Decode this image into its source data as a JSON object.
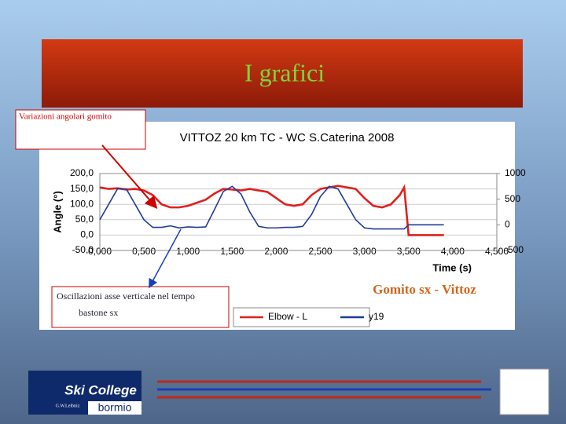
{
  "slide": {
    "title": "I grafici",
    "note_top": "Variazioni angolari gomito",
    "note_bottom": [
      "Oscillazioni asse verticale nel tempo",
      "bastone sx"
    ],
    "caption": "Gomito sx - Vittoz",
    "logo": [
      "Ski College",
      "bormio",
      "G.W.Leibniz"
    ]
  },
  "chart_data": {
    "type": "line",
    "title": "VITTOZ 20 km TC - WC  S.Caterina 2008",
    "x_label": "Time (s)",
    "y_label": "Angle (°)",
    "x": [
      0,
      0.1,
      0.2,
      0.3,
      0.4,
      0.5,
      0.6,
      0.7,
      0.8,
      0.9,
      1.0,
      1.1,
      1.2,
      1.3,
      1.4,
      1.5,
      1.6,
      1.7,
      1.8,
      1.9,
      2.0,
      2.1,
      2.2,
      2.3,
      2.4,
      2.5,
      2.6,
      2.7,
      2.8,
      2.9,
      3.0,
      3.1,
      3.2,
      3.3,
      3.4,
      3.45,
      3.5,
      3.6,
      3.7,
      3.8,
      3.9
    ],
    "series": [
      {
        "name": "Elbow - L",
        "color": "#e0201c",
        "values": [
          155,
          150,
          152,
          148,
          150,
          145,
          130,
          100,
          90,
          90,
          95,
          105,
          115,
          135,
          150,
          148,
          145,
          150,
          145,
          140,
          120,
          100,
          95,
          100,
          130,
          150,
          155,
          160,
          155,
          150,
          120,
          95,
          90,
          100,
          130,
          155,
          0,
          0,
          0,
          0,
          0
        ]
      },
      {
        "name": "y19",
        "color": "#1f3c99",
        "axis": "y2",
        "values": [
          100,
          400,
          700,
          700,
          400,
          100,
          -50,
          -50,
          -20,
          -60,
          -40,
          -50,
          -40,
          300,
          650,
          750,
          600,
          250,
          -30,
          -60,
          -60,
          -50,
          -50,
          -30,
          200,
          550,
          750,
          700,
          400,
          100,
          -60,
          -80,
          -80,
          -80,
          -80,
          -80,
          0,
          0,
          0,
          0,
          0
        ]
      }
    ],
    "xlim": [
      0,
      4.5
    ],
    "xticks": [
      {
        "value": 0,
        "label": "0,000"
      },
      {
        "value": 0.5,
        "label": "0,500"
      },
      {
        "value": 1,
        "label": "1,000"
      },
      {
        "value": 1.5,
        "label": "1,500"
      },
      {
        "value": 2,
        "label": "2,000"
      },
      {
        "value": 2.5,
        "label": "2,500"
      },
      {
        "value": 3,
        "label": "3,000"
      },
      {
        "value": 3.5,
        "label": "3,500"
      },
      {
        "value": 4,
        "label": "4,000"
      },
      {
        "value": 4.5,
        "label": "4,500"
      }
    ],
    "ylim": [
      -50,
      200
    ],
    "yticks": [
      {
        "value": 200,
        "label": "200,0"
      },
      {
        "value": 150,
        "label": "150,0"
      },
      {
        "value": 100,
        "label": "100,0"
      },
      {
        "value": 50,
        "label": "50,0"
      },
      {
        "value": 0,
        "label": "0,0"
      },
      {
        "value": -50,
        "label": "-50,0"
      }
    ],
    "y2lim": [
      -500,
      1000
    ],
    "y2ticks": [
      1000,
      500,
      0,
      -500
    ],
    "grid": true,
    "legend": "bottom"
  }
}
